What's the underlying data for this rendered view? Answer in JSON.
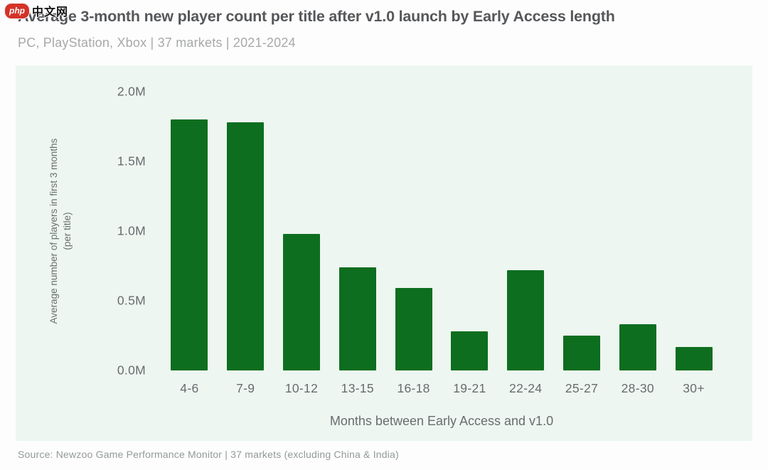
{
  "watermark": {
    "badge": "php",
    "text": "中文网"
  },
  "header": {
    "title": "Average 3-month new player count per title after v1.0 launch by Early Access length",
    "subtitle": "PC, PlayStation, Xbox | 37 markets | 2021-2024"
  },
  "footer": {
    "source": "Source: Newzoo Game Performance Monitor | 37 markets (excluding China & India)"
  },
  "chart_data": {
    "type": "bar",
    "title": "Average 3-month new player count per title after v1.0 launch by Early Access length",
    "subtitle": "PC, PlayStation, Xbox | 37 markets | 2021-2024",
    "categories": [
      "4-6",
      "7-9",
      "10-12",
      "13-15",
      "16-18",
      "19-21",
      "22-24",
      "25-27",
      "28-30",
      "30+"
    ],
    "values": [
      1.8,
      1.78,
      0.98,
      0.74,
      0.59,
      0.28,
      0.72,
      0.25,
      0.33,
      0.17
    ],
    "values_unit": "M players",
    "xlabel": "Months between Early Access and v1.0",
    "ylabel_line1": "Average number of players in first 3 months",
    "ylabel_line2": "(per title)",
    "ylim": [
      0,
      2.0
    ],
    "yticks": [
      {
        "label": "0.0M",
        "value": 0.0
      },
      {
        "label": "0.5M",
        "value": 0.5
      },
      {
        "label": "1.0M",
        "value": 1.0
      },
      {
        "label": "1.5M",
        "value": 1.5
      },
      {
        "label": "2.0M",
        "value": 2.0
      }
    ],
    "grid": false,
    "legend_position": "none",
    "bar_color": "#0d6e1f",
    "panel_background": "#edf6f0"
  }
}
